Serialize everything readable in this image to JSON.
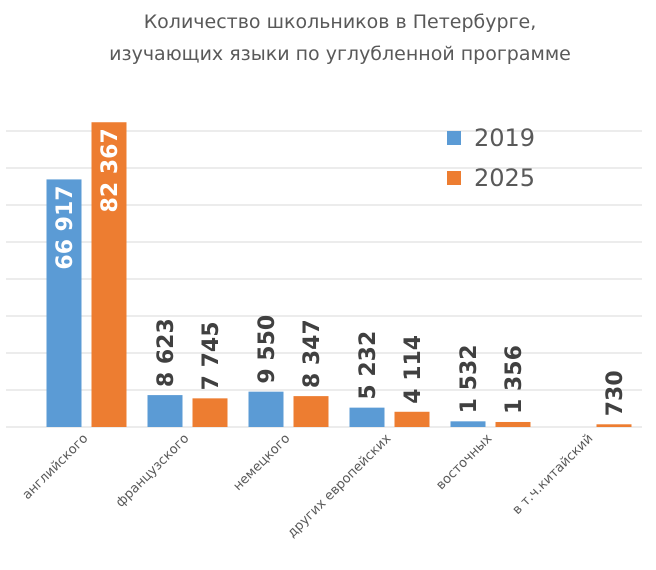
{
  "chart_data": {
    "type": "bar",
    "title": "Количество школьников в Петербурге,",
    "subtitle": "изучающих языки по углубленной программе",
    "categories": [
      "английского",
      "французского",
      "немецкого",
      "других европейских",
      "восточных",
      "в т.ч.китайский"
    ],
    "series": [
      {
        "name": "2019",
        "color": "#5b9bd5",
        "values": [
          66917,
          8623,
          9550,
          5232,
          1532,
          null
        ],
        "value_labels": [
          "66 917",
          "8 623",
          "9 550",
          "5 232",
          "1 532",
          null
        ]
      },
      {
        "name": "2025",
        "color": "#ed7d31",
        "values": [
          82367,
          7745,
          8347,
          4114,
          1356,
          730
        ],
        "value_labels": [
          "82 367",
          "7 745",
          "8 347",
          "4 114",
          "1 356",
          "730"
        ]
      }
    ],
    "ylim": [
      0,
      90000
    ],
    "yticks": [
      0,
      10000,
      20000,
      30000,
      40000,
      50000,
      60000,
      70000,
      80000
    ],
    "grid": true,
    "legend": "upper right"
  }
}
